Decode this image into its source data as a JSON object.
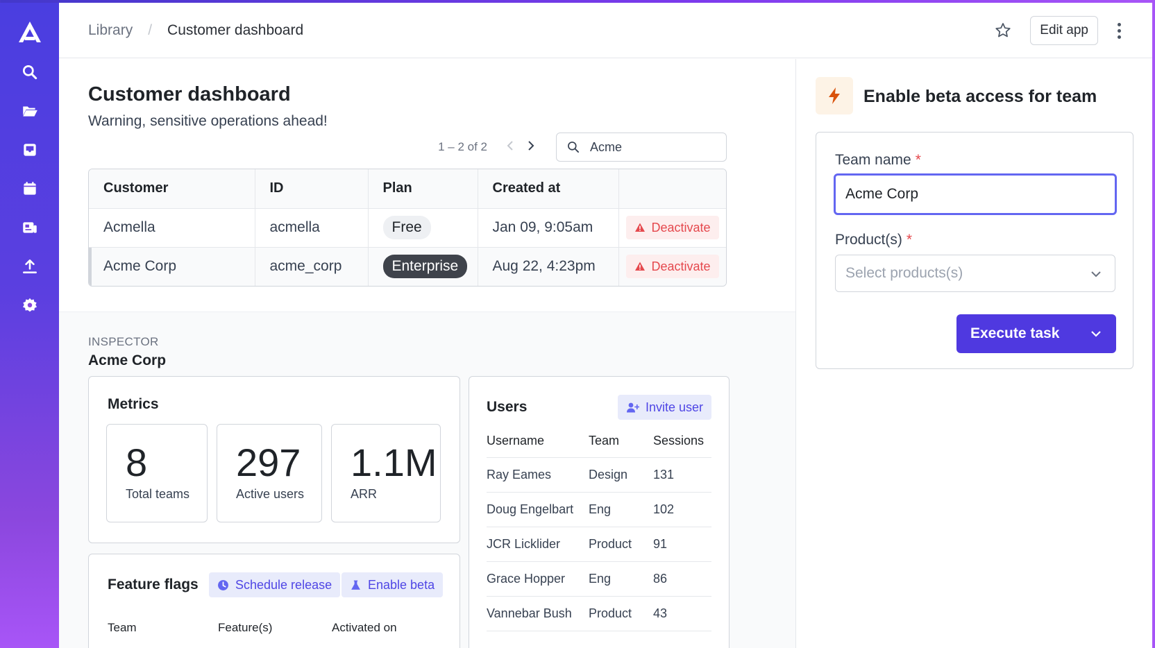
{
  "breadcrumb": {
    "parent": "Library",
    "separator": "/",
    "current": "Customer dashboard"
  },
  "topbar": {
    "edit_label": "Edit app"
  },
  "sidebar": {
    "items": [
      "search-icon",
      "folder-icon",
      "inbox-icon",
      "calendar-icon",
      "news-icon",
      "upload-icon",
      "gear-icon"
    ]
  },
  "page": {
    "title": "Customer dashboard",
    "subtitle": "Warning, sensitive operations ahead!"
  },
  "pager": {
    "text": "1 – 2 of 2",
    "prev": "‹",
    "next": "›"
  },
  "search": {
    "value": "Acme"
  },
  "customers": {
    "columns": [
      "Customer",
      "ID",
      "Plan",
      "Created at",
      ""
    ],
    "rows": [
      {
        "customer": "Acmella",
        "id": "acmella",
        "plan": "Free",
        "created": "Jan 09, 9:05am",
        "action": "Deactivate"
      },
      {
        "customer": "Acme Corp",
        "id": "acme_corp",
        "plan": "Enterprise",
        "created": "Aug 22, 4:23pm",
        "action": "Deactivate"
      }
    ]
  },
  "inspector": {
    "label": "INSPECTOR",
    "name": "Acme Corp",
    "metrics_title": "Metrics",
    "metrics": [
      {
        "value": "8",
        "label": "Total teams"
      },
      {
        "value": "297",
        "label": "Active users"
      },
      {
        "value": "1.1M",
        "label": "ARR"
      }
    ],
    "flags_title": "Feature flags",
    "schedule_label": "Schedule release",
    "enable_beta_label": "Enable beta",
    "flags_columns": [
      "Team",
      "Feature(s)",
      "Activated on"
    ],
    "users_title": "Users",
    "invite_label": "Invite user",
    "users_columns": [
      "Username",
      "Team",
      "Sessions"
    ],
    "users": [
      {
        "username": "Ray Eames",
        "team": "Design",
        "sessions": "131"
      },
      {
        "username": "Doug Engelbart",
        "team": "Eng",
        "sessions": "102"
      },
      {
        "username": "JCR Licklider",
        "team": "Product",
        "sessions": "91"
      },
      {
        "username": "Grace Hopper",
        "team": "Eng",
        "sessions": "86"
      },
      {
        "username": "Vannebar Bush",
        "team": "Product",
        "sessions": "43"
      }
    ]
  },
  "panel": {
    "title": "Enable beta access for team",
    "team_label": "Team name",
    "required_mark": "*",
    "team_value": "Acme Corp",
    "products_label": "Product(s)",
    "products_placeholder": "Select products(s)",
    "execute_label": "Execute task"
  },
  "colors": {
    "accent": "#4f39e0",
    "danger": "#e5484d",
    "focus": "#6366f1",
    "sidebar_top": "#4a3ee0",
    "sidebar_bottom": "#a855f7"
  }
}
